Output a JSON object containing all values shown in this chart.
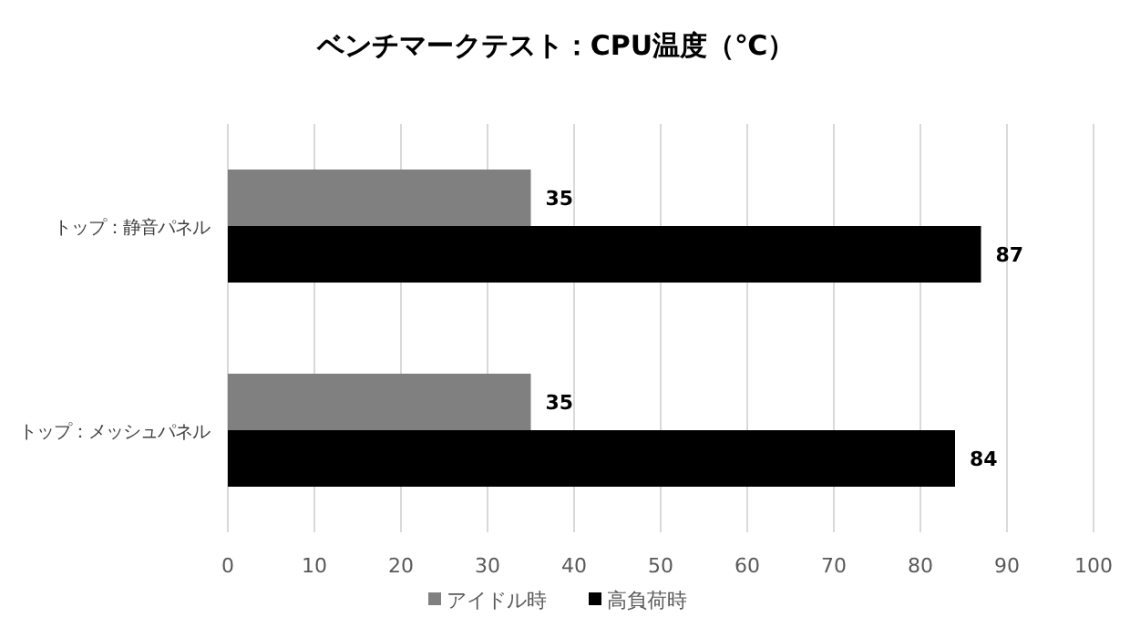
{
  "chart_data": {
    "type": "bar",
    "orientation": "horizontal",
    "title": "ベンチマークテスト：CPU温度（℃）",
    "categories": [
      "トップ：静音パネル",
      "トップ：メッシュパネル"
    ],
    "series": [
      {
        "name": "アイドル時",
        "color": "#808080",
        "values": [
          35,
          35
        ]
      },
      {
        "name": "高負荷時",
        "color": "#000000",
        "values": [
          87,
          84
        ]
      }
    ],
    "xlim": [
      0,
      100
    ],
    "xticks": [
      0,
      10,
      20,
      30,
      40,
      50,
      60,
      70,
      80,
      90,
      100
    ],
    "grid": "x",
    "legend": "bottom",
    "data_labels": true
  }
}
